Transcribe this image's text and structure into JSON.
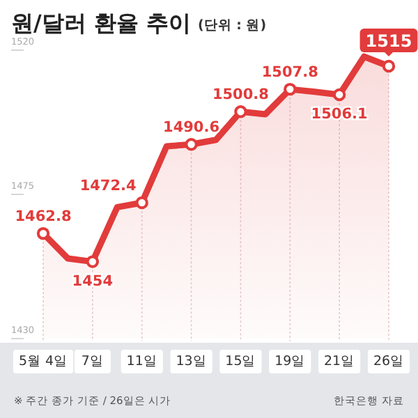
{
  "chart_data": {
    "type": "area",
    "title": "원/달러 환율 추이",
    "subtitle": "(단위 : 원)",
    "categories": [
      "5월 4일",
      null,
      "7일",
      null,
      "11일",
      null,
      "13일",
      null,
      "15일",
      null,
      "19일",
      null,
      "21일",
      null,
      "26일"
    ],
    "series": [
      {
        "color": "#e23b3b",
        "values": [
          1462.8,
          1455,
          1454,
          1471,
          1472.4,
          1490,
          1490.6,
          1492,
          1500.8,
          1500,
          1507.8,
          1507,
          1506.1,
          1518,
          1515
        ],
        "value_labels": [
          "1462.8",
          null,
          "1454",
          null,
          "1472.4",
          null,
          "1490.6",
          null,
          "1500.8",
          null,
          "1507.8",
          null,
          "1506.1",
          null,
          "1515"
        ]
      }
    ],
    "ylim": [
      1430,
      1520
    ],
    "yticks": [
      1430,
      1475,
      1520
    ],
    "grid": "x",
    "marker": "circle",
    "annotations": [
      "※ 주간 종가 기준 / 26일은 시가",
      "한국은행 자료"
    ]
  }
}
